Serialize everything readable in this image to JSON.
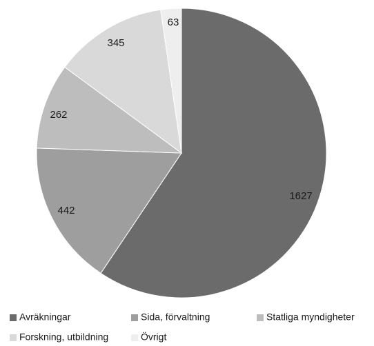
{
  "chart_data": {
    "type": "pie",
    "categories": [
      "Avräkningar",
      "Sida, förvaltning",
      "Statliga myndigheter",
      "Forskning, utbildning",
      "Övrigt"
    ],
    "values": [
      1627,
      442,
      262,
      345,
      63
    ],
    "colors": [
      "#6b6b6b",
      "#9e9e9e",
      "#bdbdbd",
      "#d9d9d9",
      "#eeeeee"
    ],
    "data_labels": [
      "1627",
      "442",
      "262",
      "345",
      "63"
    ],
    "start_angle_deg": 0,
    "direction": "clockwise",
    "legend_position": "bottom",
    "title": ""
  }
}
